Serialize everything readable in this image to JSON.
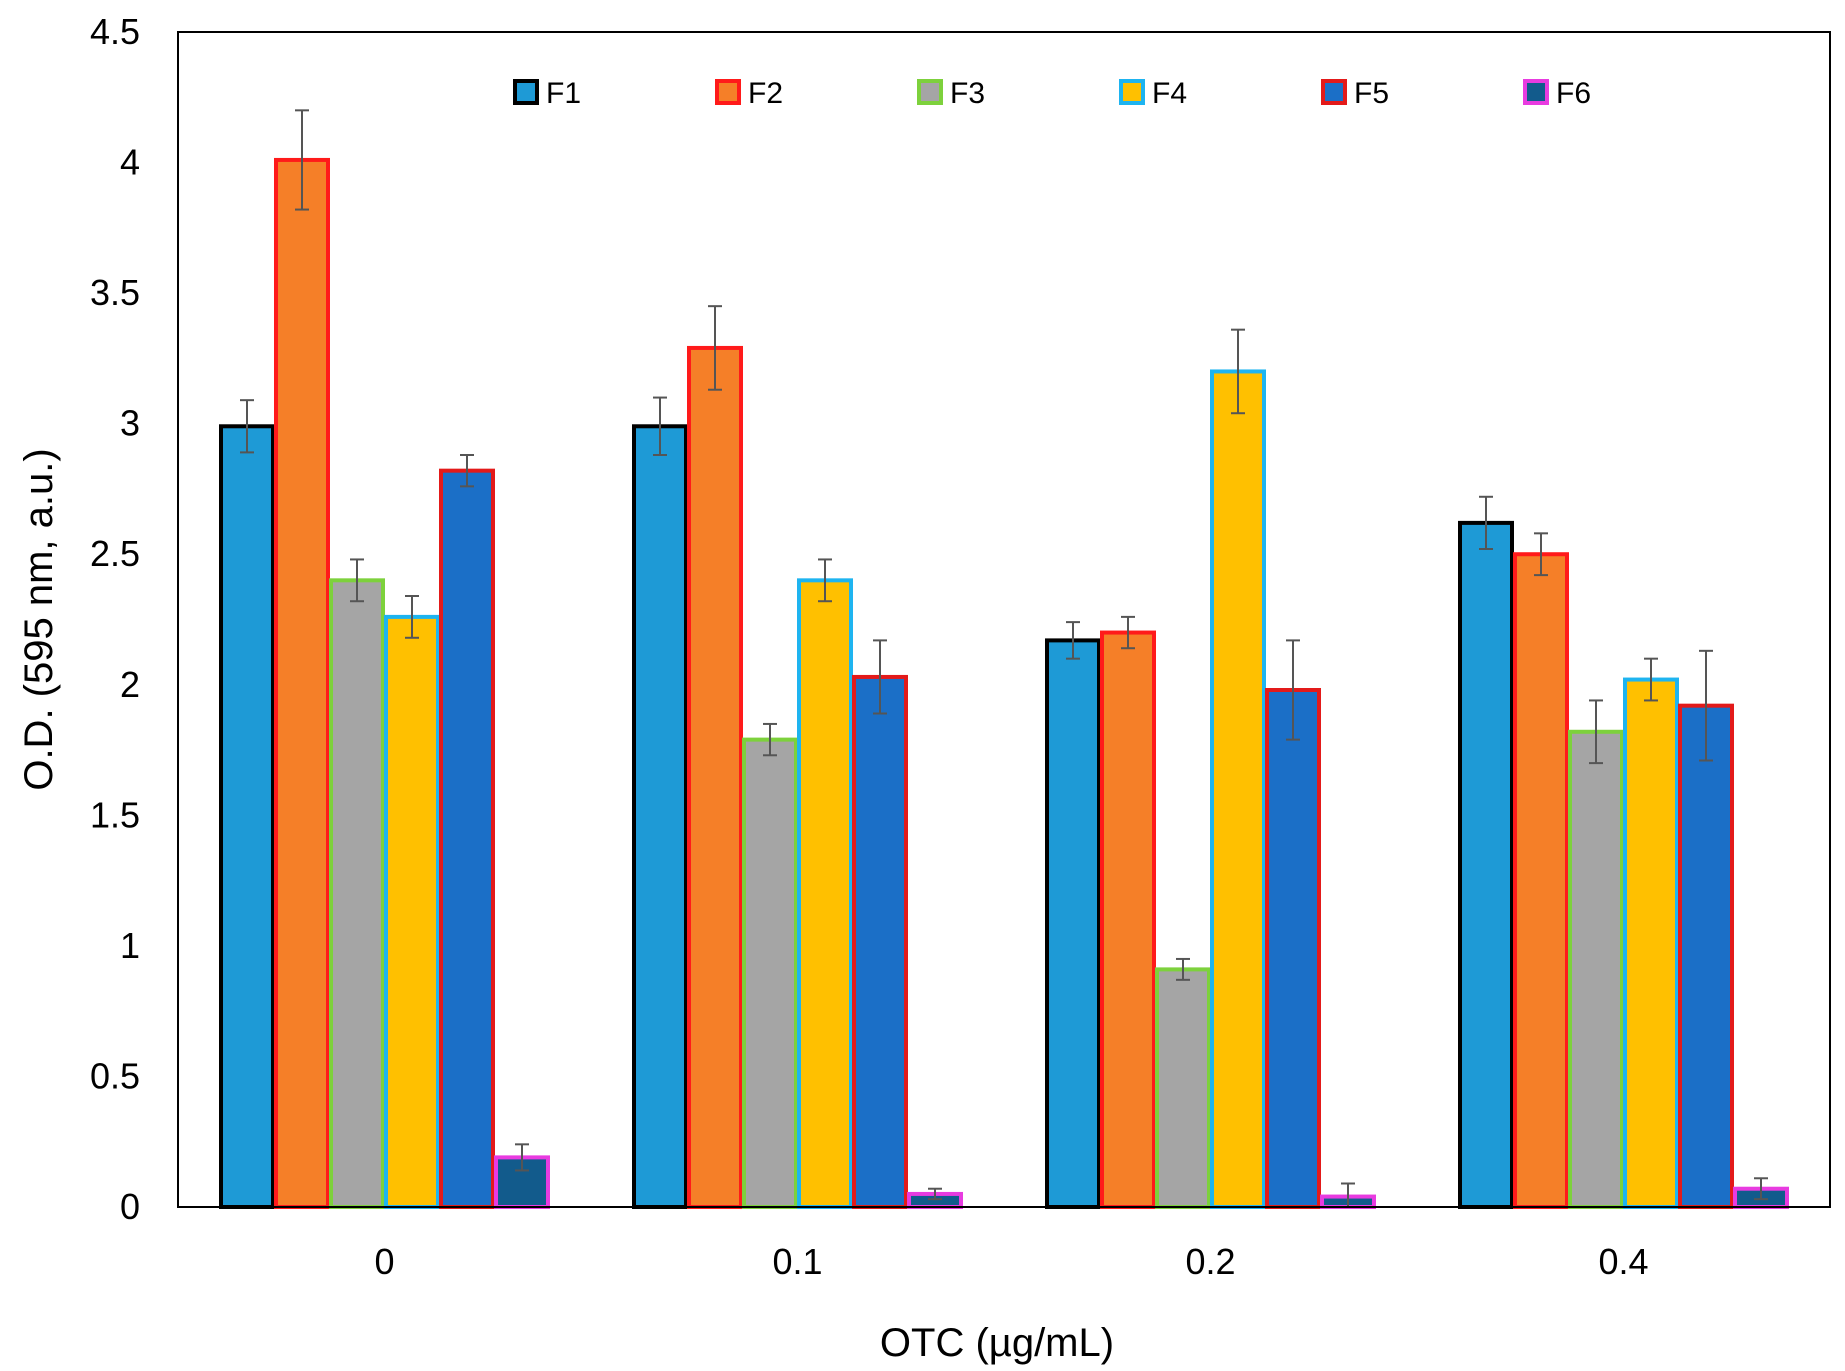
{
  "chart_data": {
    "type": "bar",
    "title": "",
    "xlabel": "OTC (µg/mL)",
    "ylabel": "O.D. (595 nm, a.u.)",
    "categories": [
      "0",
      "0.1",
      "0.2",
      "0.4"
    ],
    "ylim": [
      0,
      4.5
    ],
    "yticks": [
      "0",
      "0.5",
      "1",
      "1.5",
      "2",
      "2.5",
      "3",
      "3.5",
      "4",
      "4.5"
    ],
    "grid": false,
    "legend_position": "top",
    "series": [
      {
        "name": "F1",
        "fill": "#1E9AD6",
        "stroke": "#000000",
        "values": [
          2.99,
          2.99,
          2.17,
          2.62
        ],
        "errors": [
          0.1,
          0.11,
          0.07,
          0.1
        ]
      },
      {
        "name": "F2",
        "fill": "#F57F28",
        "stroke": "#FF1A1A",
        "values": [
          4.01,
          3.29,
          2.2,
          2.5
        ],
        "errors": [
          0.19,
          0.16,
          0.06,
          0.08
        ]
      },
      {
        "name": "F3",
        "fill": "#A5A5A5",
        "stroke": "#7DD13C",
        "values": [
          2.4,
          1.79,
          0.91,
          1.82
        ],
        "errors": [
          0.08,
          0.06,
          0.04,
          0.12
        ]
      },
      {
        "name": "F4",
        "fill": "#FFC000",
        "stroke": "#1EB4F0",
        "values": [
          2.26,
          2.4,
          3.2,
          2.02
        ],
        "errors": [
          0.08,
          0.08,
          0.16,
          0.08
        ]
      },
      {
        "name": "F5",
        "fill": "#1B6FC7",
        "stroke": "#E31A1A",
        "values": [
          2.82,
          2.03,
          1.98,
          1.92
        ],
        "errors": [
          0.06,
          0.14,
          0.19,
          0.21
        ]
      },
      {
        "name": "F6",
        "fill": "#125B8C",
        "stroke": "#E83BE0",
        "values": [
          0.19,
          0.05,
          0.04,
          0.07
        ],
        "errors": [
          0.05,
          0.02,
          0.05,
          0.04
        ]
      }
    ]
  }
}
